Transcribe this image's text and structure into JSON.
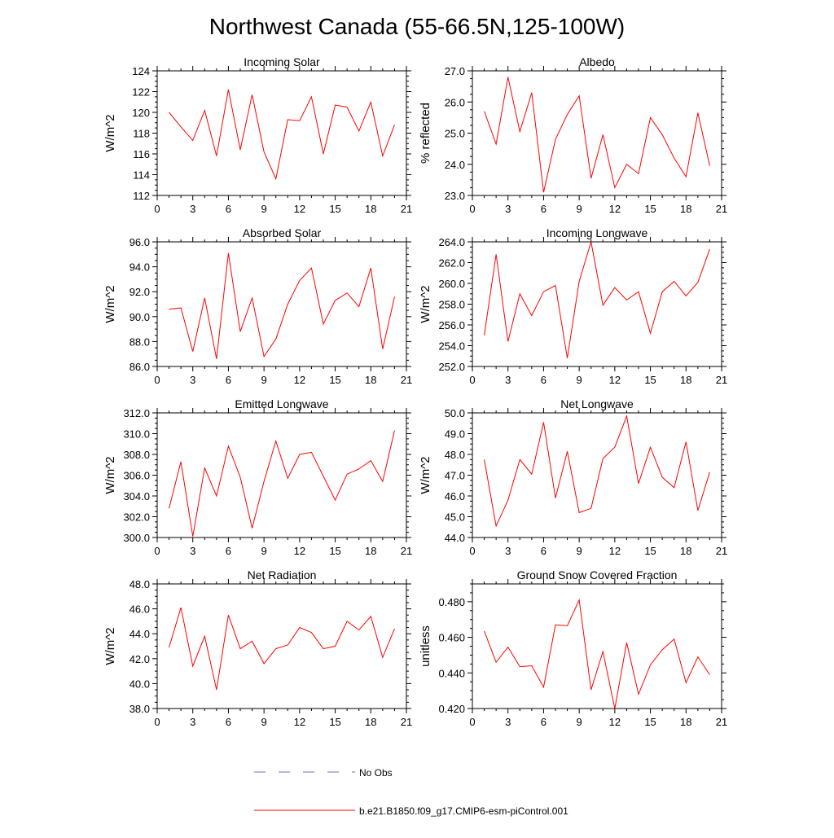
{
  "title": "Northwest Canada (55-66.5N,125-100W)",
  "series_color": "#ff0000",
  "obs_color": "#6b6bd6",
  "legend": {
    "obs_label": "No Obs",
    "model_label": "b.e21.B1850.f09_g17.CMIP6-esm-piControl.001"
  },
  "chart_data": [
    {
      "type": "line",
      "title": "Incoming Solar",
      "ylabel": "W/m^2",
      "xlim": [
        0,
        21
      ],
      "xticks": [
        0,
        3,
        6,
        9,
        12,
        15,
        18,
        21
      ],
      "ylim": [
        112,
        124
      ],
      "yticks": [
        112,
        114,
        116,
        118,
        120,
        122,
        124
      ],
      "yticklabels": [
        "112",
        "114",
        "116",
        "118",
        "120",
        "122",
        "124"
      ],
      "x": [
        1,
        2,
        3,
        4,
        5,
        6,
        7,
        8,
        9,
        10,
        11,
        12,
        13,
        14,
        15,
        16,
        17,
        18,
        19,
        20
      ],
      "values": [
        120.0,
        118.6,
        117.3,
        120.2,
        115.8,
        122.2,
        116.4,
        121.7,
        116.2,
        113.6,
        119.3,
        119.2,
        121.5,
        116.0,
        120.7,
        120.5,
        118.2,
        121.0,
        115.8,
        118.8
      ]
    },
    {
      "type": "line",
      "title": "Albedo",
      "ylabel": "% reflected",
      "xlim": [
        0,
        21
      ],
      "xticks": [
        0,
        3,
        6,
        9,
        12,
        15,
        18,
        21
      ],
      "ylim": [
        23.0,
        27.0
      ],
      "yticks": [
        23.0,
        24.0,
        25.0,
        26.0,
        27.0
      ],
      "yticklabels": [
        "23.0",
        "24.0",
        "25.0",
        "26.0",
        "27.0"
      ],
      "x": [
        1,
        2,
        3,
        4,
        5,
        6,
        7,
        8,
        9,
        10,
        11,
        12,
        13,
        14,
        15,
        16,
        17,
        18,
        19,
        20
      ],
      "values": [
        25.7,
        24.65,
        26.8,
        25.05,
        26.3,
        23.1,
        24.8,
        25.6,
        26.2,
        23.55,
        24.95,
        23.25,
        24.0,
        23.7,
        25.5,
        24.95,
        24.2,
        23.6,
        25.65,
        23.95
      ]
    },
    {
      "type": "line",
      "title": "Absorbed Solar",
      "ylabel": "W/m^2",
      "xlim": [
        0,
        21
      ],
      "xticks": [
        0,
        3,
        6,
        9,
        12,
        15,
        18,
        21
      ],
      "ylim": [
        86.0,
        96.0
      ],
      "yticks": [
        86.0,
        88.0,
        90.0,
        92.0,
        94.0,
        96.0
      ],
      "yticklabels": [
        "86.0",
        "88.0",
        "90.0",
        "92.0",
        "94.0",
        "96.0"
      ],
      "x": [
        1,
        2,
        3,
        4,
        5,
        6,
        7,
        8,
        9,
        10,
        11,
        12,
        13,
        14,
        15,
        16,
        17,
        18,
        19,
        20
      ],
      "values": [
        90.6,
        90.7,
        87.2,
        91.5,
        86.6,
        95.1,
        88.8,
        91.5,
        86.8,
        88.2,
        91.0,
        92.9,
        93.9,
        89.4,
        91.3,
        91.9,
        90.8,
        93.9,
        87.4,
        91.6
      ]
    },
    {
      "type": "line",
      "title": "Incoming Longwave",
      "ylabel": "W/m^2",
      "xlim": [
        0,
        21
      ],
      "xticks": [
        0,
        3,
        6,
        9,
        12,
        15,
        18,
        21
      ],
      "ylim": [
        252.0,
        264.0
      ],
      "yticks": [
        252.0,
        254.0,
        256.0,
        258.0,
        260.0,
        262.0,
        264.0
      ],
      "yticklabels": [
        "252.0",
        "254.0",
        "256.0",
        "258.0",
        "260.0",
        "262.0",
        "264.0"
      ],
      "x": [
        1,
        2,
        3,
        4,
        5,
        6,
        7,
        8,
        9,
        10,
        11,
        12,
        13,
        14,
        15,
        16,
        17,
        18,
        19,
        20
      ],
      "values": [
        255.0,
        262.8,
        254.4,
        259.0,
        256.9,
        259.2,
        259.8,
        252.8,
        260.2,
        264.0,
        257.9,
        259.6,
        258.4,
        259.2,
        255.2,
        259.2,
        260.2,
        258.8,
        260.1,
        263.3
      ]
    },
    {
      "type": "line",
      "title": "Emitted Longwave",
      "ylabel": "W/m^2",
      "xlim": [
        0,
        21
      ],
      "xticks": [
        0,
        3,
        6,
        9,
        12,
        15,
        18,
        21
      ],
      "ylim": [
        300.0,
        312.0
      ],
      "yticks": [
        300.0,
        302.0,
        304.0,
        306.0,
        308.0,
        310.0,
        312.0
      ],
      "yticklabels": [
        "300.0",
        "302.0",
        "304.0",
        "306.0",
        "308.0",
        "310.0",
        "312.0"
      ],
      "x": [
        1,
        2,
        3,
        4,
        5,
        6,
        7,
        8,
        9,
        10,
        11,
        12,
        13,
        14,
        15,
        16,
        17,
        18,
        19,
        20
      ],
      "values": [
        302.8,
        307.3,
        300.1,
        306.7,
        304.0,
        308.8,
        305.8,
        300.9,
        305.4,
        309.3,
        305.7,
        308.0,
        308.2,
        305.9,
        303.6,
        306.1,
        306.6,
        307.4,
        305.4,
        310.3
      ]
    },
    {
      "type": "line",
      "title": "Net Longwave",
      "ylabel": "W/m^2",
      "xlim": [
        0,
        21
      ],
      "xticks": [
        0,
        3,
        6,
        9,
        12,
        15,
        18,
        21
      ],
      "ylim": [
        44.0,
        50.0
      ],
      "yticks": [
        44.0,
        45.0,
        46.0,
        47.0,
        48.0,
        49.0,
        50.0
      ],
      "yticklabels": [
        "44.0",
        "45.0",
        "46.0",
        "47.0",
        "48.0",
        "49.0",
        "50.0"
      ],
      "x": [
        1,
        2,
        3,
        4,
        5,
        6,
        7,
        8,
        9,
        10,
        11,
        12,
        13,
        14,
        15,
        16,
        17,
        18,
        19,
        20
      ],
      "values": [
        47.75,
        44.55,
        45.8,
        47.75,
        47.05,
        49.55,
        45.9,
        48.15,
        45.2,
        45.4,
        47.8,
        48.35,
        49.85,
        46.6,
        48.35,
        46.9,
        46.4,
        48.6,
        45.3,
        47.15
      ]
    },
    {
      "type": "line",
      "title": "Net Radiation",
      "ylabel": "W/m^2",
      "xlim": [
        0,
        21
      ],
      "xticks": [
        0,
        3,
        6,
        9,
        12,
        15,
        18,
        21
      ],
      "ylim": [
        38.0,
        48.0
      ],
      "yticks": [
        38.0,
        40.0,
        42.0,
        44.0,
        46.0,
        48.0
      ],
      "yticklabels": [
        "38.0",
        "40.0",
        "42.0",
        "44.0",
        "46.0",
        "48.0"
      ],
      "x": [
        1,
        2,
        3,
        4,
        5,
        6,
        7,
        8,
        9,
        10,
        11,
        12,
        13,
        14,
        15,
        16,
        17,
        18,
        19,
        20
      ],
      "values": [
        42.9,
        46.1,
        41.4,
        43.8,
        39.5,
        45.5,
        42.8,
        43.4,
        41.6,
        42.8,
        43.1,
        44.5,
        44.1,
        42.8,
        43.0,
        45.0,
        44.3,
        45.4,
        42.1,
        44.4
      ]
    },
    {
      "type": "line",
      "title": "Ground Snow Covered Fraction",
      "ylabel": "unitless",
      "xlim": [
        0,
        21
      ],
      "xticks": [
        0,
        3,
        6,
        9,
        12,
        15,
        18,
        21
      ],
      "ylim": [
        0.42,
        0.49
      ],
      "yticks": [
        0.42,
        0.44,
        0.46,
        0.48
      ],
      "yticklabels": [
        "0.420",
        "0.440",
        "0.460",
        "0.480"
      ],
      "x": [
        1,
        2,
        3,
        4,
        5,
        6,
        7,
        8,
        9,
        10,
        11,
        12,
        13,
        14,
        15,
        16,
        17,
        18,
        19,
        20
      ],
      "values": [
        0.4635,
        0.446,
        0.4545,
        0.4435,
        0.444,
        0.432,
        0.467,
        0.4665,
        0.481,
        0.4305,
        0.452,
        0.42,
        0.457,
        0.428,
        0.4445,
        0.453,
        0.459,
        0.4345,
        0.449,
        0.439
      ]
    }
  ]
}
